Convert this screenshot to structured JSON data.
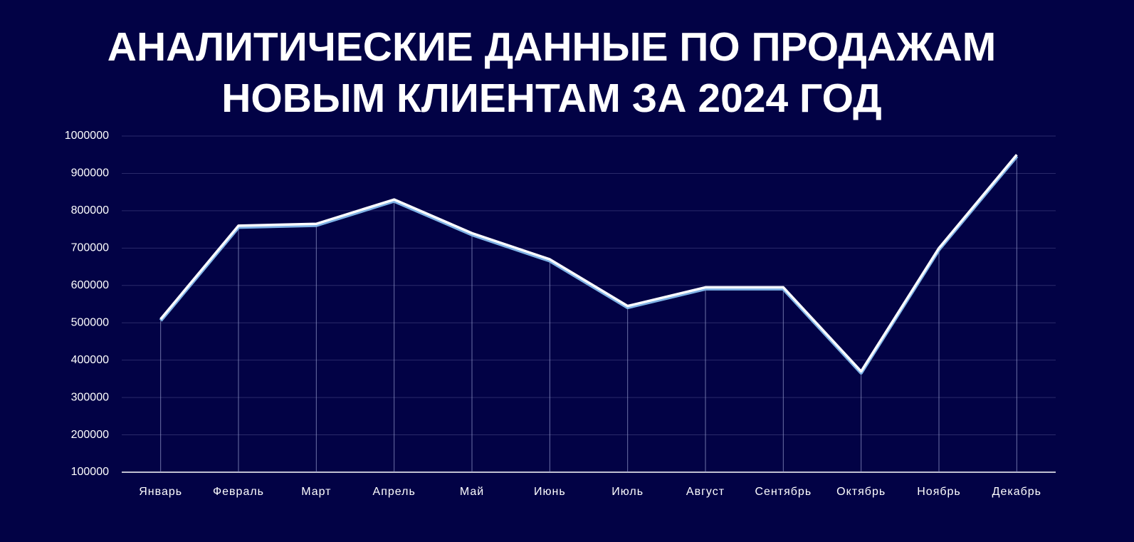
{
  "chart_data": {
    "type": "line",
    "title": "АНАЛИТИЧЕСКИЕ ДАННЫЕ ПО ПРОДАЖАМ\nНОВЫМ КЛИЕНТАМ ЗА 2024 ГОД",
    "categories": [
      "Январь",
      "Февраль",
      "Март",
      "Апрель",
      "Май",
      "Июнь",
      "Июль",
      "Август",
      "Сентябрь",
      "Октябрь",
      "Ноябрь",
      "Декабрь"
    ],
    "values": [
      510000,
      760000,
      765000,
      830000,
      740000,
      670000,
      545000,
      595000,
      595000,
      370000,
      700000,
      950000
    ],
    "color": "#ffffff",
    "ylim": [
      100000,
      1000000
    ],
    "yticks": [
      100000,
      200000,
      300000,
      400000,
      500000,
      600000,
      700000,
      800000,
      900000,
      1000000
    ],
    "grid": true
  }
}
